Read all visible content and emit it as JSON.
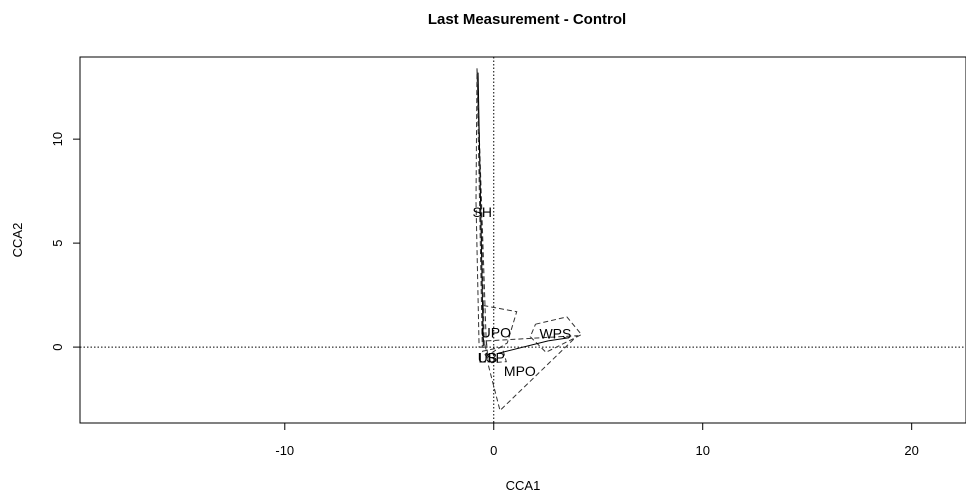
{
  "chart_data": {
    "type": "scatter",
    "title": "Last Measurement - Control",
    "xlabel": "CCA1",
    "ylabel": "CCA2",
    "xlim": [
      -19.8,
      22.6
    ],
    "ylim": [
      -3.65,
      13.95
    ],
    "x_ticks": [
      -10,
      0,
      10,
      20
    ],
    "x_tick_labels": [
      "-10",
      "0",
      "10",
      "20"
    ],
    "y_ticks": [
      0,
      5,
      10
    ],
    "y_tick_labels": [
      "0",
      "5",
      "10"
    ],
    "reference_lines": {
      "x": 0,
      "y": 0,
      "style": "dotted"
    },
    "labels": [
      {
        "text": "SH",
        "x": -0.55,
        "y": 6.5
      },
      {
        "text": "UPO",
        "x": 0.1,
        "y": 0.7
      },
      {
        "text": "WPS",
        "x": 2.95,
        "y": 0.65
      },
      {
        "text": "LSP",
        "x": -0.1,
        "y": -0.5
      },
      {
        "text": "UB",
        "x": -0.3,
        "y": -0.5
      },
      {
        "text": "MPO",
        "x": 1.25,
        "y": -1.15
      }
    ],
    "hulls": [
      {
        "group": "SH",
        "points": [
          [
            -0.8,
            13.4
          ],
          [
            -0.35,
            0.0
          ],
          [
            -0.55,
            0.0
          ],
          [
            -0.8,
            13.4
          ]
        ]
      },
      {
        "group": "SH",
        "points": [
          [
            -0.8,
            13.4
          ],
          [
            -0.6,
            7.0
          ],
          [
            -0.45,
            0.0
          ],
          [
            -0.7,
            0.0
          ],
          [
            -0.85,
            7.0
          ],
          [
            -0.8,
            13.4
          ]
        ]
      },
      {
        "group": "UPO",
        "points": [
          [
            -0.5,
            2.0
          ],
          [
            1.1,
            1.7
          ],
          [
            0.65,
            0.2
          ],
          [
            -0.3,
            -0.4
          ],
          [
            -0.55,
            0.6
          ],
          [
            -0.5,
            2.0
          ]
        ]
      },
      {
        "group": "WPS",
        "points": [
          [
            2.0,
            1.1
          ],
          [
            3.5,
            1.45
          ],
          [
            4.2,
            0.6
          ],
          [
            2.5,
            -0.25
          ],
          [
            1.75,
            0.5
          ],
          [
            2.0,
            1.1
          ]
        ]
      },
      {
        "group": "MPO",
        "points": [
          [
            -0.35,
            0.3
          ],
          [
            4.0,
            0.55
          ],
          [
            0.3,
            -3.05
          ],
          [
            -0.25,
            -0.9
          ],
          [
            -0.35,
            0.3
          ]
        ]
      },
      {
        "group": "LSP",
        "points": [
          [
            -0.55,
            -0.2
          ],
          [
            0.4,
            0.0
          ],
          [
            0.6,
            -0.7
          ],
          [
            -0.1,
            -0.75
          ],
          [
            -0.55,
            -0.2
          ]
        ]
      }
    ],
    "segments": [
      {
        "from": [
          -0.75,
          13.2
        ],
        "to": [
          -0.5,
          0.05
        ]
      },
      {
        "from": [
          0.2,
          -0.3
        ],
        "to": [
          2.6,
          0.3
        ]
      },
      {
        "from": [
          2.6,
          0.3
        ],
        "to": [
          3.6,
          0.45
        ]
      }
    ],
    "grid": false,
    "legend": "none"
  }
}
